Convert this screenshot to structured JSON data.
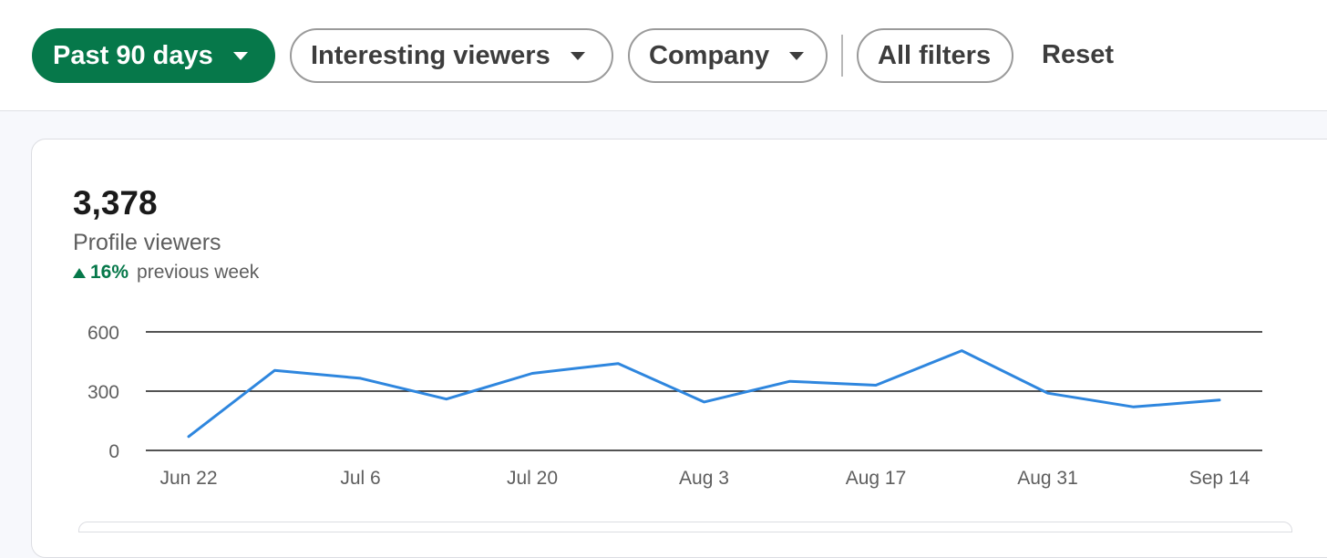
{
  "filters": {
    "time_range": {
      "label": "Past 90 days"
    },
    "viewers": {
      "label": "Interesting viewers"
    },
    "company": {
      "label": "Company"
    },
    "all_filters": {
      "label": "All filters"
    },
    "reset": {
      "label": "Reset"
    }
  },
  "summary": {
    "value": "3,378",
    "label": "Profile viewers",
    "change_percent": "16%",
    "change_suffix": "previous week",
    "change_direction": "up"
  },
  "colors": {
    "accent_green": "#06784a",
    "line_blue": "#2e86de"
  },
  "chart_data": {
    "type": "line",
    "title": "",
    "xlabel": "",
    "ylabel": "",
    "ylim": [
      0,
      600
    ],
    "yticks": [
      "600",
      "300",
      "0"
    ],
    "grid": true,
    "x_labels": [
      "Jun 22",
      "Jul 6",
      "Jul 20",
      "Aug 3",
      "Aug 17",
      "Aug 31",
      "Sep 14"
    ],
    "x": [
      "Jun 22",
      "Jun 29",
      "Jul 6",
      "Jul 13",
      "Jul 20",
      "Jul 27",
      "Aug 3",
      "Aug 10",
      "Aug 17",
      "Aug 24",
      "Aug 31",
      "Sep 7",
      "Sep 14"
    ],
    "series": [
      {
        "values": [
          70,
          405,
          365,
          260,
          390,
          440,
          245,
          350,
          330,
          505,
          290,
          220,
          255
        ]
      }
    ]
  }
}
